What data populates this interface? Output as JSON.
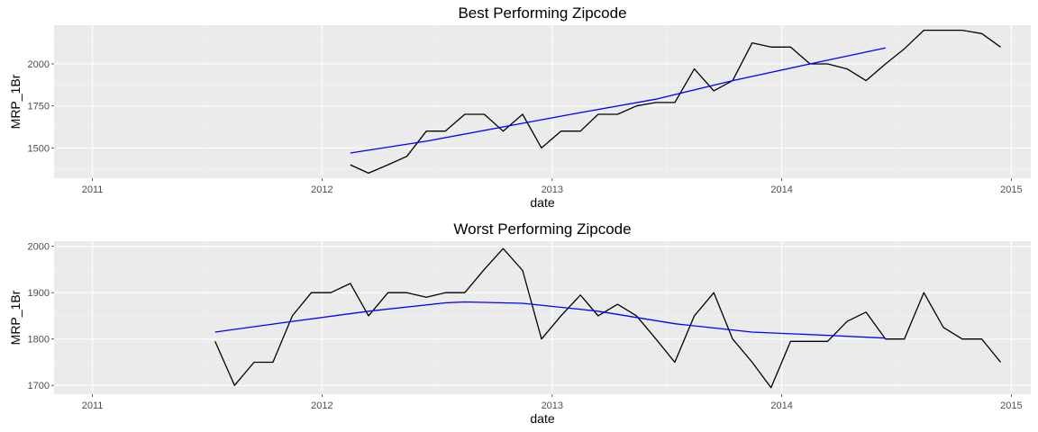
{
  "chart_data": [
    {
      "type": "line",
      "title": "Best Performing Zipcode",
      "xlabel": "date",
      "ylabel": "MRP_1Br",
      "xlim": [
        "2010-11-01",
        "2015-02-01"
      ],
      "ylim": [
        1320,
        2230
      ],
      "x_ticks": [
        "2011",
        "2012",
        "2013",
        "2014",
        "2015"
      ],
      "y_ticks": [
        1500,
        1750,
        2000
      ],
      "grid": true,
      "series": [
        {
          "color": "#000000",
          "points": [
            [
              "2012-02-15",
              1400
            ],
            [
              "2012-03-15",
              1350
            ],
            [
              "2012-04-15",
              1400
            ],
            [
              "2012-05-15",
              1450
            ],
            [
              "2012-06-15",
              1600
            ],
            [
              "2012-07-15",
              1600
            ],
            [
              "2012-08-15",
              1700
            ],
            [
              "2012-09-15",
              1700
            ],
            [
              "2012-10-15",
              1600
            ],
            [
              "2012-11-15",
              1700
            ],
            [
              "2012-12-15",
              1500
            ],
            [
              "2013-01-15",
              1600
            ],
            [
              "2013-02-15",
              1600
            ],
            [
              "2013-03-15",
              1700
            ],
            [
              "2013-04-15",
              1700
            ],
            [
              "2013-05-15",
              1750
            ],
            [
              "2013-06-15",
              1770
            ],
            [
              "2013-07-15",
              1770
            ],
            [
              "2013-08-15",
              1970
            ],
            [
              "2013-09-15",
              1840
            ],
            [
              "2013-10-15",
              1900
            ],
            [
              "2013-11-15",
              2125
            ],
            [
              "2013-12-15",
              2100
            ],
            [
              "2014-01-15",
              2100
            ],
            [
              "2014-02-15",
              2000
            ],
            [
              "2014-03-15",
              2000
            ],
            [
              "2014-04-15",
              1970
            ],
            [
              "2014-05-15",
              1900
            ],
            [
              "2014-06-15",
              2000
            ],
            [
              "2014-07-15",
              2090
            ],
            [
              "2014-08-15",
              2200
            ],
            [
              "2014-09-15",
              2200
            ],
            [
              "2014-10-15",
              2200
            ],
            [
              "2014-11-15",
              2180
            ],
            [
              "2014-12-15",
              2100
            ]
          ]
        },
        {
          "color": "#0000ff",
          "points": [
            [
              "2012-02-15",
              1470
            ],
            [
              "2012-06-15",
              1540
            ],
            [
              "2012-10-15",
              1625
            ],
            [
              "2013-02-15",
              1710
            ],
            [
              "2013-06-15",
              1790
            ],
            [
              "2013-10-15",
              1900
            ],
            [
              "2014-02-15",
              2000
            ],
            [
              "2014-06-15",
              2095
            ]
          ]
        }
      ]
    },
    {
      "type": "line",
      "title": "Worst Performing Zipcode",
      "xlabel": "date",
      "ylabel": "MRP_1Br",
      "xlim": [
        "2010-11-01",
        "2015-02-01"
      ],
      "ylim": [
        1681,
        2011
      ],
      "x_ticks": [
        "2011",
        "2012",
        "2013",
        "2014",
        "2015"
      ],
      "y_ticks": [
        1700,
        1800,
        1900,
        2000
      ],
      "grid": true,
      "series": [
        {
          "color": "#000000",
          "points": [
            [
              "2011-07-15",
              1795
            ],
            [
              "2011-08-15",
              1700
            ],
            [
              "2011-09-15",
              1750
            ],
            [
              "2011-10-15",
              1750
            ],
            [
              "2011-11-15",
              1850
            ],
            [
              "2011-12-15",
              1900
            ],
            [
              "2012-01-15",
              1900
            ],
            [
              "2012-02-15",
              1920
            ],
            [
              "2012-03-15",
              1850
            ],
            [
              "2012-04-15",
              1900
            ],
            [
              "2012-05-15",
              1900
            ],
            [
              "2012-06-15",
              1890
            ],
            [
              "2012-07-15",
              1900
            ],
            [
              "2012-08-15",
              1900
            ],
            [
              "2012-09-15",
              1950
            ],
            [
              "2012-10-15",
              1995
            ],
            [
              "2012-11-15",
              1948
            ],
            [
              "2012-12-15",
              1800
            ],
            [
              "2013-01-15",
              1850
            ],
            [
              "2013-02-15",
              1895
            ],
            [
              "2013-03-15",
              1850
            ],
            [
              "2013-04-15",
              1875
            ],
            [
              "2013-05-15",
              1850
            ],
            [
              "2013-06-15",
              1800
            ],
            [
              "2013-07-15",
              1750
            ],
            [
              "2013-08-15",
              1850
            ],
            [
              "2013-09-15",
              1900
            ],
            [
              "2013-10-15",
              1800
            ],
            [
              "2013-11-15",
              1750
            ],
            [
              "2013-12-15",
              1695
            ],
            [
              "2014-01-15",
              1795
            ],
            [
              "2014-02-15",
              1795
            ],
            [
              "2014-03-15",
              1795
            ],
            [
              "2014-04-15",
              1838
            ],
            [
              "2014-05-15",
              1858
            ],
            [
              "2014-06-15",
              1800
            ],
            [
              "2014-07-15",
              1800
            ],
            [
              "2014-08-15",
              1900
            ],
            [
              "2014-09-15",
              1825
            ],
            [
              "2014-10-15",
              1800
            ],
            [
              "2014-11-15",
              1800
            ],
            [
              "2014-12-15",
              1750
            ]
          ]
        },
        {
          "color": "#0000ff",
          "points": [
            [
              "2011-07-15",
              1815
            ],
            [
              "2011-11-15",
              1838
            ],
            [
              "2012-03-15",
              1860
            ],
            [
              "2012-07-15",
              1878
            ],
            [
              "2012-08-15",
              1880
            ],
            [
              "2012-11-15",
              1877
            ],
            [
              "2013-03-15",
              1860
            ],
            [
              "2013-07-15",
              1833
            ],
            [
              "2013-11-15",
              1815
            ],
            [
              "2014-03-15",
              1808
            ],
            [
              "2014-06-15",
              1802
            ]
          ]
        }
      ]
    }
  ]
}
